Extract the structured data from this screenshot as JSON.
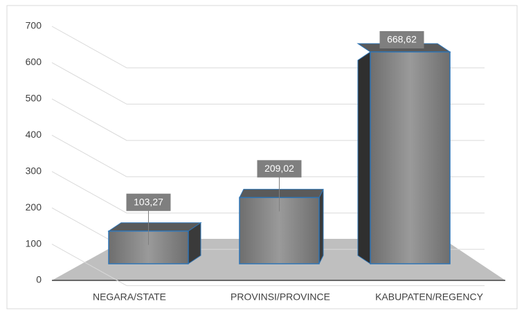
{
  "chart_data": {
    "type": "bar3d",
    "categories": [
      "NEGARA/STATE",
      "PROVINSI/PROVINCE",
      "KABUPATEN/REGENCY"
    ],
    "values": [
      103.27,
      209.02,
      668.62
    ],
    "value_labels": [
      "103,27",
      "209,02",
      "668,62"
    ],
    "color": "#7f7f7f",
    "ylim": [
      0,
      700
    ],
    "yticks": [
      0,
      100,
      200,
      300,
      400,
      500,
      600,
      700
    ],
    "grid": true
  }
}
